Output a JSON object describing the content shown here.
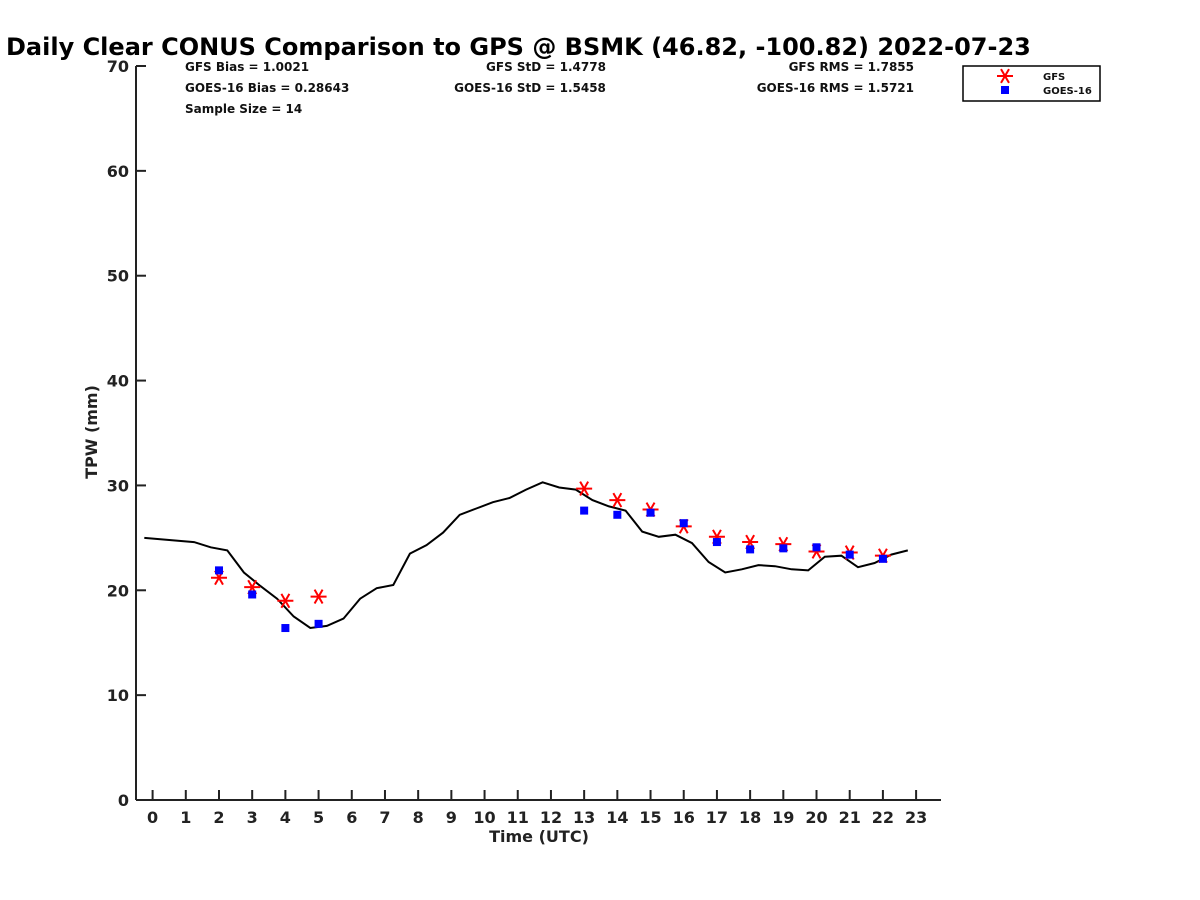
{
  "chart_data": {
    "type": "scatter",
    "title": "Daily Clear CONUS Comparison to GPS @ BSMK (46.82, -100.82) 2022-07-23",
    "xlabel": "Time (UTC)",
    "ylabel": "TPW (mm)",
    "xlim": [
      -0.5,
      23.75
    ],
    "ylim": [
      0,
      70
    ],
    "xticks": [
      0,
      1,
      2,
      3,
      4,
      5,
      6,
      7,
      8,
      9,
      10,
      11,
      12,
      13,
      14,
      15,
      16,
      17,
      18,
      19,
      20,
      21,
      22,
      23
    ],
    "yticks": [
      0,
      10,
      20,
      30,
      40,
      50,
      60,
      70
    ],
    "grid": false,
    "legend_position": "top-right",
    "stats": [
      {
        "label": "GFS Bias = 1.0021"
      },
      {
        "label": "GFS StD = 1.4778"
      },
      {
        "label": "GFS RMS = 1.7855"
      },
      {
        "label": "GOES-16 Bias = 0.28643"
      },
      {
        "label": "GOES-16 StD = 1.5458"
      },
      {
        "label": "GOES-16 RMS = 1.5721"
      },
      {
        "label": "Sample Size = 14"
      }
    ],
    "series": [
      {
        "type": "line",
        "color": "#000000",
        "x": [
          -0.25,
          0.5,
          1.25,
          1.75,
          2.25,
          2.75,
          3.25,
          3.75,
          4.25,
          4.75,
          5.25,
          5.75,
          6.25,
          6.75,
          7.25,
          7.75,
          8.25,
          8.75,
          9.25,
          9.75,
          10.25,
          10.75,
          11.25,
          11.75,
          12.25,
          12.75,
          13.25,
          13.75,
          14.25,
          14.75,
          15.25,
          15.75,
          16.25,
          16.75,
          17.25,
          17.75,
          18.25,
          18.75,
          19.25,
          19.75,
          20.25,
          20.75,
          21.25,
          21.75,
          22.25,
          22.75
        ],
        "y": [
          25.0,
          24.8,
          24.6,
          24.1,
          23.8,
          21.7,
          20.4,
          19.2,
          17.5,
          16.4,
          16.6,
          17.3,
          19.2,
          20.2,
          20.5,
          23.5,
          24.3,
          25.5,
          27.2,
          27.8,
          28.4,
          28.8,
          29.6,
          30.3,
          29.8,
          29.6,
          28.6,
          28.0,
          27.6,
          25.6,
          25.1,
          25.3,
          24.5,
          22.7,
          21.7,
          22.0,
          22.4,
          22.3,
          22.0,
          21.9,
          23.2,
          23.3,
          22.2,
          22.6,
          23.4,
          23.8
        ]
      },
      {
        "name": "GFS",
        "type": "scatter",
        "marker": "asterisk",
        "color": "#ff0000",
        "x": [
          2,
          3,
          4,
          5,
          13,
          14,
          15,
          16,
          17,
          18,
          19,
          20,
          21,
          22
        ],
        "y": [
          21.2,
          20.3,
          19.0,
          19.4,
          29.7,
          28.6,
          27.7,
          26.1,
          25.1,
          24.6,
          24.4,
          23.7,
          23.6,
          23.3
        ]
      },
      {
        "name": "GOES-16",
        "type": "scatter",
        "marker": "square",
        "color": "#0000ff",
        "x": [
          2,
          3,
          4,
          5,
          13,
          14,
          15,
          16,
          17,
          18,
          19,
          20,
          21,
          22
        ],
        "y": [
          21.9,
          19.6,
          16.4,
          16.8,
          27.6,
          27.2,
          27.4,
          26.4,
          24.6,
          23.9,
          24.0,
          24.1,
          23.4,
          23.0
        ]
      }
    ]
  }
}
